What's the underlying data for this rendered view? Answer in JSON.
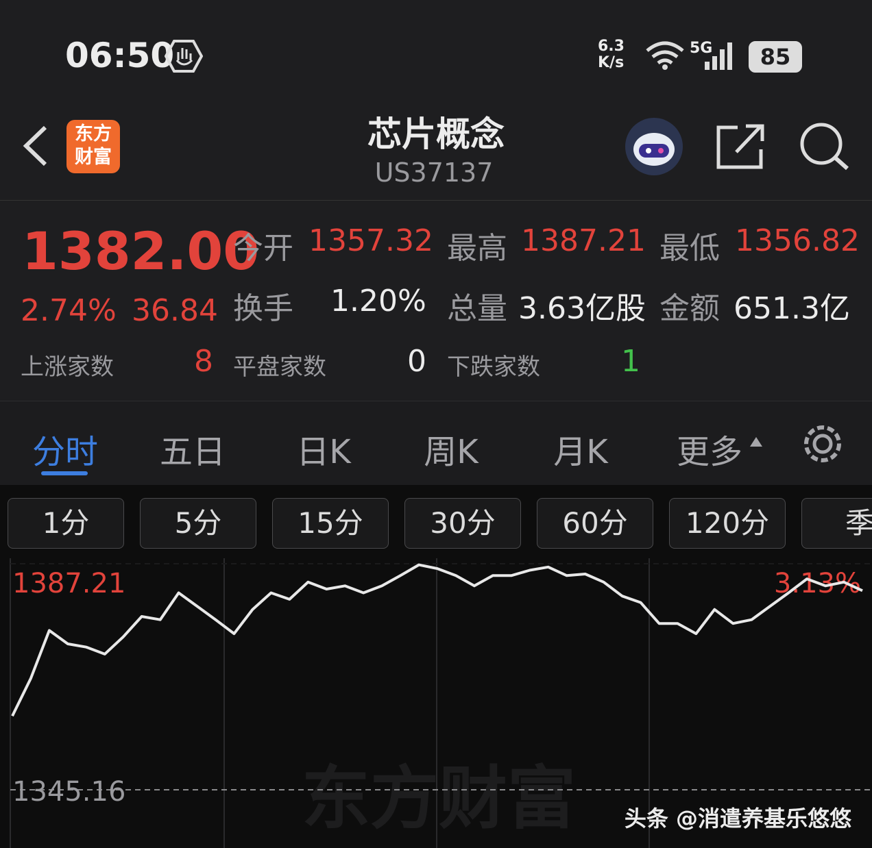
{
  "status_bar": {
    "time": "06:50",
    "speed_value": "6.3",
    "speed_unit": "K/s",
    "network": "5G",
    "battery": "85"
  },
  "header": {
    "logo_top": "东方",
    "logo_bottom": "财富",
    "title": "芯片概念",
    "code": "US37137"
  },
  "quote": {
    "price": "1382.00",
    "change_pct": "2.74%",
    "change": "36.84",
    "stats": [
      {
        "label": "今开",
        "value": "1357.32"
      },
      {
        "label": "最高",
        "value": "1387.21"
      },
      {
        "label": "最低",
        "value": "1356.82"
      },
      {
        "label": "换手",
        "value": "1.20%"
      },
      {
        "label": "总量",
        "value": "3.63亿股"
      },
      {
        "label": "金额",
        "value": "651.3亿"
      }
    ],
    "counts": [
      {
        "label": "上涨家数",
        "value": "8"
      },
      {
        "label": "平盘家数",
        "value": "0"
      },
      {
        "label": "下跌家数",
        "value": "1"
      }
    ]
  },
  "tabs": [
    "分时",
    "五日",
    "日K",
    "周K",
    "月K",
    "更多"
  ],
  "periods": [
    "1分",
    "5分",
    "15分",
    "30分",
    "60分",
    "120分",
    "季"
  ],
  "watermark": "东方财富",
  "footer": "头条 @消遣养基乐悠悠",
  "chart_data": {
    "type": "line",
    "color": "#e8e8e8",
    "values": [
      1358.9,
      1365.9,
      1374.8,
      1372.3,
      1371.7,
      1370.4,
      1373.6,
      1377.4,
      1376.8,
      1381.8,
      1379.3,
      1376.8,
      1374.2,
      1378.7,
      1381.8,
      1380.6,
      1383.8,
      1382.5,
      1383.1,
      1381.8,
      1383.1,
      1385.0,
      1387.0,
      1386.3,
      1385.0,
      1383.1,
      1385.0,
      1385.0,
      1386.0,
      1386.6,
      1385.0,
      1385.3,
      1383.8,
      1381.2,
      1380.0,
      1376.1,
      1376.1,
      1374.2,
      1378.7,
      1376.1,
      1376.8,
      1379.3,
      1381.8,
      1384.4,
      1383.1,
      1383.8,
      1382.2
    ],
    "ylim": [
      1303.11,
      1387.21
    ],
    "yticks": [
      1387.21,
      1345.16
    ],
    "y2lim": [
      -3.13,
      3.13
    ],
    "y2ticks": [
      {
        "value": 3.13,
        "label": "3.13%"
      }
    ]
  }
}
